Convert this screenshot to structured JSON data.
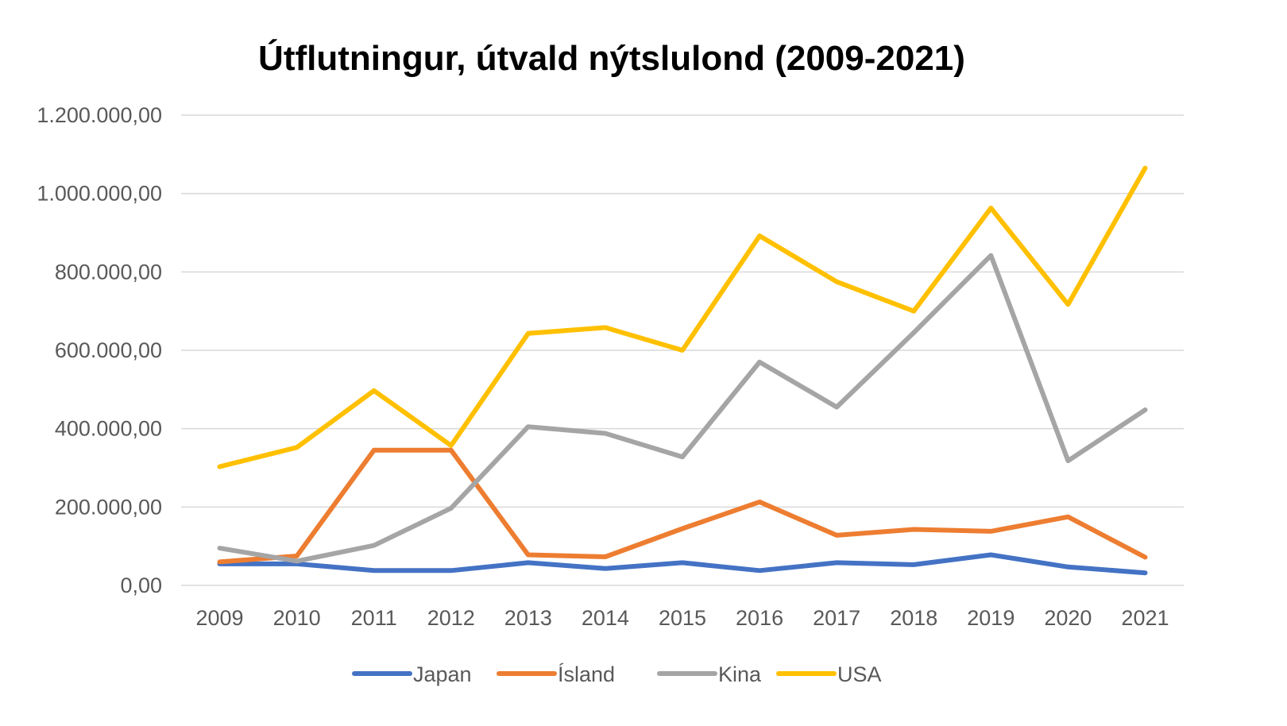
{
  "chart_data": {
    "type": "line",
    "title": "Útflutningur, útvald nýtslulond (2009-2021)",
    "categories": [
      "2009",
      "2010",
      "2011",
      "2012",
      "2013",
      "2014",
      "2015",
      "2016",
      "2017",
      "2018",
      "2019",
      "2020",
      "2021"
    ],
    "ylim": [
      0,
      1200000
    ],
    "yticks": [
      0,
      200000,
      400000,
      600000,
      800000,
      1000000,
      1200000
    ],
    "ytick_labels": [
      "0,00",
      "200.000,00",
      "400.000,00",
      "600.000,00",
      "800.000,00",
      "1.000.000,00",
      "1.200.000,00"
    ],
    "grid": true,
    "legend_position": "bottom",
    "series": [
      {
        "name": "Japan",
        "color": "#4472C4",
        "values": [
          55000,
          55000,
          38000,
          38000,
          58000,
          43000,
          58000,
          38000,
          58000,
          53000,
          78000,
          47000,
          32000
        ]
      },
      {
        "name": "Ísland",
        "color": "#ED7D31",
        "values": [
          60000,
          75000,
          345000,
          345000,
          78000,
          73000,
          145000,
          213000,
          128000,
          143000,
          138000,
          175000,
          72000
        ]
      },
      {
        "name": "Kina",
        "color": "#A5A5A5",
        "values": [
          95000,
          62000,
          102000,
          197000,
          405000,
          388000,
          328000,
          570000,
          455000,
          645000,
          842000,
          318000,
          448000
        ]
      },
      {
        "name": "USA",
        "color": "#FFC000",
        "values": [
          303000,
          352000,
          497000,
          357000,
          643000,
          658000,
          600000,
          892000,
          775000,
          700000,
          963000,
          717000,
          1065000
        ]
      }
    ]
  }
}
